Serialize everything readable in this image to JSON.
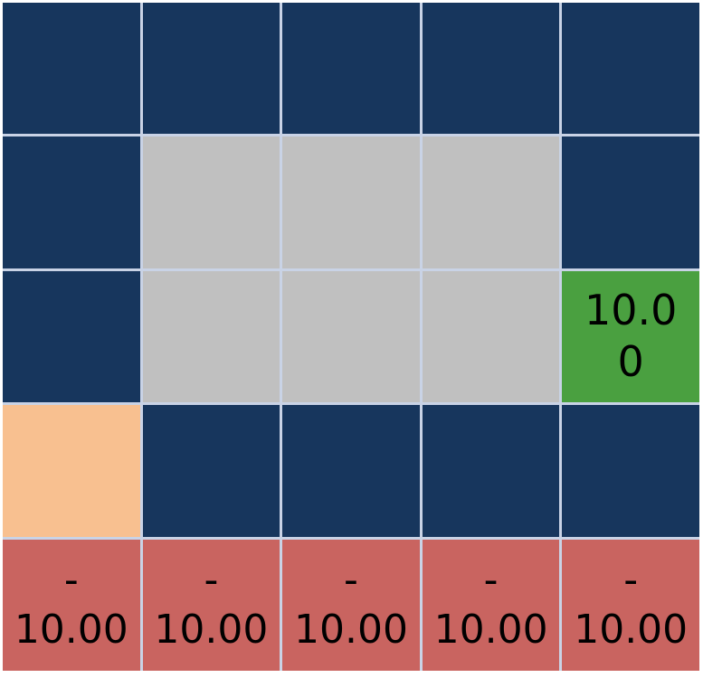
{
  "colors": {
    "open": "#17365d",
    "wall": "#c0c0c0",
    "goal": "#4aa040",
    "start": "#f8c090",
    "penalty": "#c96460"
  },
  "grid": {
    "rows": [
      [
        {
          "type": "open",
          "label": ""
        },
        {
          "type": "open",
          "label": ""
        },
        {
          "type": "open",
          "label": ""
        },
        {
          "type": "open",
          "label": ""
        },
        {
          "type": "open",
          "label": ""
        }
      ],
      [
        {
          "type": "open",
          "label": ""
        },
        {
          "type": "wall",
          "label": ""
        },
        {
          "type": "wall",
          "label": ""
        },
        {
          "type": "wall",
          "label": ""
        },
        {
          "type": "open",
          "label": ""
        }
      ],
      [
        {
          "type": "open",
          "label": ""
        },
        {
          "type": "wall",
          "label": ""
        },
        {
          "type": "wall",
          "label": ""
        },
        {
          "type": "wall",
          "label": ""
        },
        {
          "type": "goal",
          "label": "10.0\n0"
        }
      ],
      [
        {
          "type": "start",
          "label": ""
        },
        {
          "type": "open",
          "label": ""
        },
        {
          "type": "open",
          "label": ""
        },
        {
          "type": "open",
          "label": ""
        },
        {
          "type": "open",
          "label": ""
        }
      ],
      [
        {
          "type": "penalty",
          "label": "-\n10.00"
        },
        {
          "type": "penalty",
          "label": "-\n10.00"
        },
        {
          "type": "penalty",
          "label": "-\n10.00"
        },
        {
          "type": "penalty",
          "label": "-\n10.00"
        },
        {
          "type": "penalty",
          "label": "-\n10.00"
        }
      ]
    ]
  }
}
